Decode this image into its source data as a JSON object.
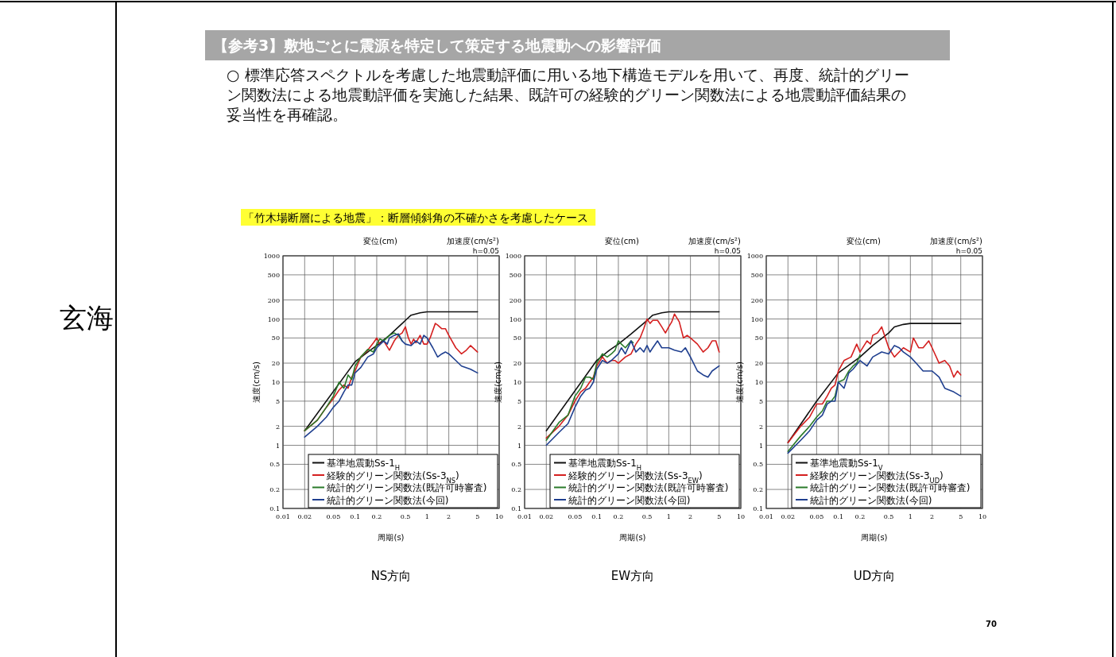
{
  "chart_data": [
    {
      "type": "other",
      "title": "【参考3】敷地ごとに震源を特定して策定する地震動への影響評価",
      "subtitle": "「竹木場断層による地震」：断層傾斜角の不確かさを考慮したケース",
      "annotations": [
        "玄海",
        "○ 標準応答スペクトルを考慮した地震動評価に用いる地下構造モデルを用いて、再度、統計的グリーン関数法による地震動評価を実施した結果、既許可の経験的グリーン関数法による地震動評価結果の妥当性を再確認。",
        "70"
      ]
    },
    {
      "type": "line",
      "title": "NS方向",
      "xlabel": "周期(s)",
      "ylabel": "速度(cm/s)",
      "log": "xy",
      "grid": true,
      "legend": "bottom right",
      "xlim": [
        0.01,
        10
      ],
      "ylim": [
        0.1,
        1000
      ],
      "xticks": [
        0.01,
        0.02,
        0.05,
        0.1,
        0.2,
        0.5,
        1,
        2,
        5,
        10
      ],
      "yticks": [
        0.1,
        0.2,
        0.5,
        1,
        2,
        5,
        10,
        20,
        50,
        100,
        200,
        500,
        1000
      ],
      "annotations": [
        "変位(cm)",
        "加速度(cm/s²)",
        "h=0.05"
      ],
      "series": [
        {
          "name": "基準地震動Ss-1$_{H}$",
          "color": "#111111",
          "x": [
            0.02,
            0.1,
            0.15,
            0.2,
            0.3,
            0.5,
            0.6,
            0.8,
            1,
            5
          ],
          "values": [
            1.7,
            21,
            30,
            38,
            55,
            95,
            115,
            125,
            130,
            130
          ]
        },
        {
          "name": "経験的グリーン関数法(Ss-3$_{NS}$)",
          "color": "#d42020",
          "x": [
            0.02,
            0.03,
            0.04,
            0.05,
            0.06,
            0.07,
            0.08,
            0.09,
            0.1,
            0.12,
            0.15,
            0.18,
            0.2,
            0.22,
            0.25,
            0.3,
            0.35,
            0.4,
            0.45,
            0.5,
            0.55,
            0.6,
            0.65,
            0.7,
            0.8,
            0.9,
            1,
            1.1,
            1.3,
            1.4,
            1.6,
            1.8,
            2,
            2.5,
            3,
            3.5,
            4,
            5
          ],
          "values": [
            1.7,
            2.5,
            4,
            5.5,
            7.5,
            9,
            8,
            12,
            15,
            25,
            32,
            42,
            50,
            40,
            45,
            32,
            45,
            55,
            60,
            75,
            50,
            40,
            48,
            42,
            55,
            40,
            40,
            50,
            85,
            80,
            70,
            70,
            55,
            35,
            28,
            32,
            38,
            30
          ]
        },
        {
          "name": "統計的グリーン関数法(既許可時審査)",
          "color": "#2a7a2a",
          "x": [
            0.02,
            0.03,
            0.04,
            0.05,
            0.06,
            0.07,
            0.08,
            0.09,
            0.1,
            0.12,
            0.15,
            0.18,
            0.2,
            0.22,
            0.25,
            0.3,
            0.35,
            0.4,
            0.45
          ],
          "values": [
            1.7,
            2.5,
            4,
            6,
            10,
            8,
            13,
            11,
            18,
            25,
            33,
            30,
            40,
            48,
            45,
            55,
            60,
            55,
            45
          ]
        },
        {
          "name": "統計的グリーン関数法(今回)",
          "color": "#1f3f8f",
          "x": [
            0.02,
            0.03,
            0.04,
            0.05,
            0.06,
            0.07,
            0.08,
            0.09,
            0.1,
            0.12,
            0.15,
            0.18,
            0.2,
            0.25,
            0.28,
            0.3,
            0.35,
            0.4,
            0.45,
            0.5,
            0.6,
            0.7,
            0.8,
            0.9,
            1,
            1.2,
            1.4,
            1.6,
            1.8,
            2,
            2.5,
            3,
            4,
            5
          ],
          "values": [
            1.35,
            2,
            2.8,
            4,
            5,
            7,
            9,
            9,
            14,
            17,
            25,
            28,
            35,
            45,
            40,
            50,
            55,
            58,
            45,
            40,
            38,
            45,
            40,
            55,
            50,
            35,
            25,
            28,
            30,
            28,
            22,
            18,
            16,
            14
          ]
        }
      ]
    },
    {
      "type": "line",
      "title": "EW方向",
      "xlabel": "周期(s)",
      "ylabel": "速度(cm/s)",
      "log": "xy",
      "grid": true,
      "legend": "bottom right",
      "xlim": [
        0.01,
        10
      ],
      "ylim": [
        0.1,
        1000
      ],
      "xticks": [
        0.01,
        0.02,
        0.05,
        0.1,
        0.2,
        0.5,
        1,
        2,
        5,
        10
      ],
      "yticks": [
        0.1,
        0.2,
        0.5,
        1,
        2,
        5,
        10,
        20,
        50,
        100,
        200,
        500,
        1000
      ],
      "annotations": [
        "変位(cm)",
        "加速度(cm/s²)",
        "h=0.05"
      ],
      "series": [
        {
          "name": "基準地震動Ss-1$_{H}$",
          "color": "#111111",
          "x": [
            0.02,
            0.1,
            0.15,
            0.2,
            0.3,
            0.5,
            0.6,
            0.8,
            1,
            5
          ],
          "values": [
            1.7,
            22,
            32,
            40,
            58,
            95,
            115,
            125,
            130,
            130
          ]
        },
        {
          "name": "経験的グリーン関数法(Ss-3$_{EW}$)",
          "color": "#d42020",
          "x": [
            0.02,
            0.03,
            0.04,
            0.05,
            0.06,
            0.07,
            0.08,
            0.09,
            0.1,
            0.12,
            0.14,
            0.16,
            0.18,
            0.2,
            0.25,
            0.3,
            0.35,
            0.4,
            0.45,
            0.5,
            0.55,
            0.6,
            0.7,
            0.8,
            0.9,
            1,
            1.1,
            1.2,
            1.4,
            1.6,
            1.8,
            2,
            2.5,
            3,
            3.5,
            4,
            4.5,
            5
          ],
          "values": [
            1.3,
            2,
            3,
            5,
            7,
            8,
            10,
            12,
            18,
            25,
            20,
            22,
            22,
            20,
            25,
            28,
            40,
            50,
            70,
            100,
            85,
            95,
            95,
            75,
            60,
            75,
            90,
            120,
            90,
            50,
            55,
            50,
            40,
            30,
            35,
            45,
            45,
            30
          ]
        },
        {
          "name": "統計的グリーン関数法(既許可時審査)",
          "color": "#2a7a2a",
          "x": [
            0.02,
            0.03,
            0.04,
            0.05,
            0.06,
            0.07,
            0.08,
            0.09,
            0.1,
            0.12,
            0.14,
            0.16,
            0.18,
            0.2,
            0.22,
            0.25,
            0.3,
            0.32
          ],
          "values": [
            1.2,
            2.3,
            3,
            6,
            8,
            12,
            12,
            11,
            20,
            28,
            25,
            28,
            32,
            45,
            40,
            35,
            45,
            42
          ]
        },
        {
          "name": "統計的グリーン関数法(今回)",
          "color": "#1f3f8f",
          "x": [
            0.02,
            0.03,
            0.04,
            0.05,
            0.06,
            0.07,
            0.08,
            0.09,
            0.1,
            0.12,
            0.14,
            0.16,
            0.2,
            0.22,
            0.25,
            0.3,
            0.35,
            0.4,
            0.45,
            0.5,
            0.55,
            0.6,
            0.7,
            0.8,
            1,
            1.2,
            1.5,
            1.7,
            2,
            2.5,
            3,
            3.5,
            4,
            5
          ],
          "values": [
            1,
            1.6,
            2.2,
            4,
            6,
            7.5,
            8,
            10,
            16,
            22,
            20,
            22,
            28,
            35,
            28,
            45,
            30,
            35,
            30,
            38,
            30,
            35,
            45,
            35,
            35,
            32,
            30,
            35,
            25,
            15,
            13,
            12,
            15,
            18
          ]
        }
      ]
    },
    {
      "type": "line",
      "title": "UD方向",
      "xlabel": "周期(s)",
      "ylabel": "速度(cm/s)",
      "log": "xy",
      "grid": true,
      "legend": "bottom right",
      "xlim": [
        0.01,
        10
      ],
      "ylim": [
        0.1,
        1000
      ],
      "xticks": [
        0.01,
        0.02,
        0.05,
        0.1,
        0.2,
        0.5,
        1,
        2,
        5,
        10
      ],
      "yticks": [
        0.1,
        0.2,
        0.5,
        1,
        2,
        5,
        10,
        20,
        50,
        100,
        200,
        500,
        1000
      ],
      "annotations": [
        "変位(cm)",
        "加速度(cm/s²)",
        "h=0.05"
      ],
      "series": [
        {
          "name": "基準地震動Ss-1$_{V}$",
          "color": "#111111",
          "x": [
            0.02,
            0.05,
            0.1,
            0.2,
            0.3,
            0.5,
            0.6,
            0.8,
            1,
            5
          ],
          "values": [
            1.1,
            5,
            14,
            25,
            38,
            60,
            75,
            82,
            85,
            85
          ]
        },
        {
          "name": "経験的グリーン関数法(Ss-3$_{UD}$)",
          "color": "#d42020",
          "x": [
            0.02,
            0.03,
            0.04,
            0.05,
            0.06,
            0.07,
            0.08,
            0.09,
            0.1,
            0.12,
            0.15,
            0.18,
            0.2,
            0.25,
            0.28,
            0.3,
            0.35,
            0.4,
            0.45,
            0.5,
            0.6,
            0.7,
            0.8,
            1,
            1.1,
            1.3,
            1.5,
            1.8,
            2,
            2.5,
            3,
            3.5,
            4,
            4.5,
            5
          ],
          "values": [
            1.1,
            2,
            2.8,
            4.5,
            4.5,
            6,
            8,
            9,
            15,
            22,
            25,
            40,
            30,
            45,
            40,
            55,
            60,
            75,
            50,
            35,
            25,
            30,
            35,
            30,
            50,
            35,
            35,
            45,
            35,
            20,
            22,
            18,
            12,
            15,
            13
          ]
        },
        {
          "name": "統計的グリーン関数法(既許可時審査)",
          "color": "#2a7a2a",
          "x": [
            0.02,
            0.03,
            0.04,
            0.05,
            0.06,
            0.07,
            0.08,
            0.09,
            0.1,
            0.12,
            0.14,
            0.16,
            0.18,
            0.2
          ],
          "values": [
            0.8,
            1.4,
            2,
            2.8,
            3.5,
            5,
            5,
            6,
            10,
            11,
            15,
            18,
            20,
            27
          ]
        },
        {
          "name": "統計的グリーン関数法(今回)",
          "color": "#1f3f8f",
          "x": [
            0.02,
            0.03,
            0.04,
            0.05,
            0.06,
            0.07,
            0.08,
            0.09,
            0.1,
            0.12,
            0.14,
            0.16,
            0.2,
            0.25,
            0.3,
            0.4,
            0.5,
            0.6,
            0.7,
            0.8,
            1,
            1.2,
            1.5,
            2,
            2.5,
            3,
            4,
            5
          ],
          "values": [
            0.75,
            1.2,
            1.7,
            2.5,
            3,
            4.5,
            5,
            5,
            10,
            8,
            14,
            16,
            22,
            18,
            25,
            30,
            28,
            38,
            35,
            30,
            25,
            20,
            15,
            15,
            12,
            8,
            7,
            6
          ]
        }
      ]
    }
  ]
}
